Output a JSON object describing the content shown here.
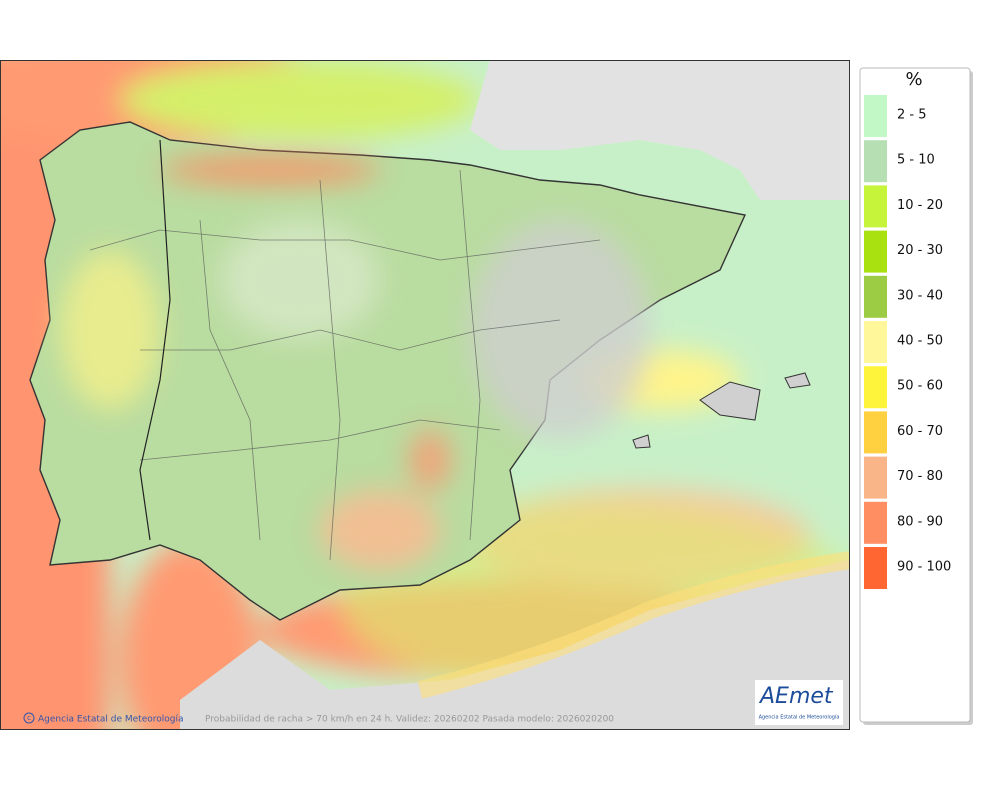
{
  "legend": {
    "title": "%",
    "entries": [
      {
        "label": "2 - 5",
        "color": "#c2f7c6"
      },
      {
        "label": "5 - 10",
        "color": "#b6dfb4"
      },
      {
        "label": "10 - 20",
        "color": "#c6f43a"
      },
      {
        "label": "20 - 30",
        "color": "#a8e010"
      },
      {
        "label": "30 - 40",
        "color": "#9ccc44"
      },
      {
        "label": "40 - 50",
        "color": "#fff79a"
      },
      {
        "label": "50 - 60",
        "color": "#fff43c"
      },
      {
        "label": "60 - 70",
        "color": "#ffd040"
      },
      {
        "label": "70 - 80",
        "color": "#f9b587"
      },
      {
        "label": "80 - 90",
        "color": "#ff8f62"
      },
      {
        "label": "90 - 100",
        "color": "#ff6632"
      }
    ]
  },
  "footer": {
    "credit": "Agencia Estatal de Meteorología",
    "caption": "Probabilidad de racha > 70 km/h en 24 h. Validez: 20260202 Pasada modelo: 2026020200"
  },
  "logo": {
    "name": "AEmet",
    "subtitle": "Agencia Estatal de Meteorología"
  }
}
